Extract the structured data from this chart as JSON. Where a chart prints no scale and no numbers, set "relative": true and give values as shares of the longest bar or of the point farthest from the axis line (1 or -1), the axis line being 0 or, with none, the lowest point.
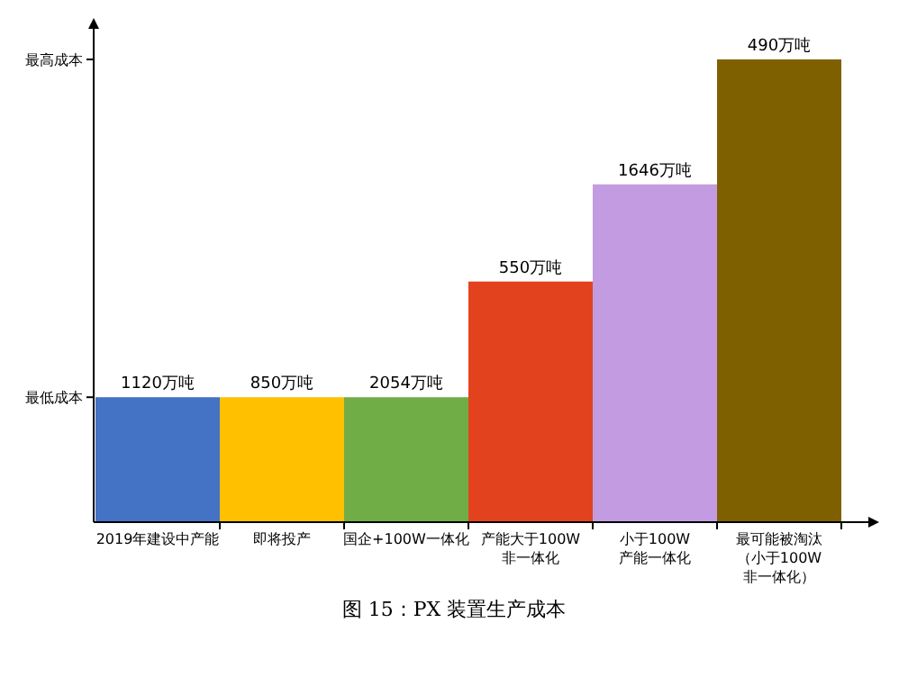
{
  "chart_data": {
    "type": "bar",
    "title": "图 15：PX 装置生产成本",
    "relative": true,
    "categories": [
      "2019年建设中产能",
      "即将投产",
      "国企+100W一体化",
      "产能大于100W非一体化",
      "小于100W产能一体化",
      "最可能被淘汰（小于100W非一体化）"
    ],
    "values": [
      0.27,
      0.27,
      0.27,
      0.52,
      0.73,
      1
    ],
    "colors": [
      "#4472c4",
      "#ffc000",
      "#70ad47",
      "#e2431e",
      "#c39be0",
      "#7f6000"
    ],
    "annotations": [
      "最低成本",
      "最高成本",
      {
        "text": "1120万吨",
        "x": "2019年建设中产能",
        "y": 0.27
      },
      {
        "text": "850万吨",
        "x": "即将投产",
        "y": 0.27
      },
      {
        "text": "2054万吨",
        "x": "国企+100W一体化",
        "y": 0.27
      },
      {
        "text": "550万吨",
        "x": "产能大于100W非一体化",
        "y": 0.52
      },
      {
        "text": "1646万吨",
        "x": "小于100W产能一体化",
        "y": 0.73
      },
      {
        "text": "490万吨",
        "x": "最可能被淘汰（小于100W非一体化）",
        "y": 1
      }
    ]
  }
}
